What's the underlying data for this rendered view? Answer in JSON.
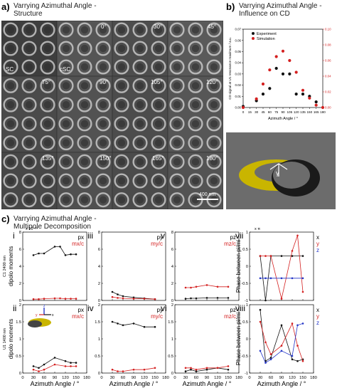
{
  "panel_a": {
    "letter": "a)",
    "title_line1": "Varrying Azimuthal Angle -",
    "title_line2": "Structure",
    "angles": [
      "0°",
      "30°",
      "45°",
      "75°",
      "90°",
      "105°",
      "120°",
      "135°",
      "150°",
      "165°",
      "180°"
    ],
    "labels": {
      "sc": "SC",
      "csc": "cSC"
    },
    "scale_bar": "400 nm"
  },
  "panel_b": {
    "letter": "b)",
    "title_line1": "Varrying Azimuthal Angle -",
    "title_line2": "Influence on CD",
    "legend_experiment": "Experiment",
    "legend_simulation": "Simulation",
    "ylabel_left": "CD signal at U1 resonance maximum / a.u.",
    "xlabel": "Azimuth Angle / °"
  },
  "panel_c": {
    "letter": "c)",
    "title_line1": "Varrying Azimuthal Angle -",
    "title_line2": "Multipole Decomposition",
    "row_label_top": "C1 2400 nm",
    "row_label_bottom": "U1 1400 nm",
    "ylabel_dipole": "dipolo moments",
    "ylabel_phase": "Phase between pi/mi",
    "xlabel": "Azimuth Angle / °",
    "scale_exp": "x 10⁻²⁶",
    "scale_pi": "x π",
    "panels": {
      "i": {
        "roman": "i",
        "leg1": "px",
        "leg2": "mx/c"
      },
      "ii": {
        "roman": "ii",
        "leg1": "px",
        "leg2": "mx/c"
      },
      "iii": {
        "roman": "iii",
        "leg1": "py",
        "leg2": "my/c"
      },
      "iv": {
        "roman": "iv",
        "leg1": "py",
        "leg2": "my/c"
      },
      "v": {
        "roman": "v",
        "leg1": "pz",
        "leg2": "mz/c"
      },
      "vi": {
        "roman": "vi",
        "leg1": "pz",
        "leg2": "mz/c"
      },
      "vii": {
        "roman": "vii",
        "leg1": "x",
        "leg2": "y",
        "leg3": "z"
      },
      "viii": {
        "roman": "viii",
        "leg1": "x",
        "leg2": "y",
        "leg3": "z"
      }
    },
    "inset_axes": {
      "z": "z",
      "y": "y",
      "x": "x"
    }
  },
  "colors": {
    "black": "#111111",
    "red": "#d42020",
    "blue": "#2436c8",
    "gold": "#c8b400"
  },
  "chart_data": [
    {
      "type": "scatter",
      "title": "Influence on CD",
      "xlabel": "Azimuth Angle / °",
      "ylabel": "CD signal at U1 resonance maximum / a.u.",
      "xlim": [
        0,
        180
      ],
      "x_ticks": [
        0,
        15,
        30,
        45,
        60,
        75,
        90,
        105,
        120,
        135,
        150,
        165,
        180
      ],
      "ylim_left": [
        0,
        0.07
      ],
      "y_ticks_left": [
        0.0,
        0.01,
        0.02,
        0.03,
        0.04,
        0.05,
        0.06,
        0.07
      ],
      "ylim_right": [
        0,
        0.1
      ],
      "y_ticks_right": [
        0.0,
        0.02,
        0.04,
        0.06,
        0.08,
        0.1
      ],
      "legend": "top-left",
      "series": [
        {
          "name": "Experiment",
          "axis": "left",
          "color": "#111111",
          "x": [
            0,
            30,
            45,
            60,
            75,
            90,
            105,
            120,
            135,
            150,
            165
          ],
          "y": [
            0.001,
            0.006,
            0.012,
            0.017,
            0.035,
            0.03,
            0.03,
            0.012,
            0.012,
            0.01,
            0.005
          ]
        },
        {
          "name": "Simulation",
          "axis": "right",
          "color": "#d42020",
          "x": [
            0,
            30,
            45,
            60,
            75,
            90,
            105,
            120,
            135,
            150,
            165,
            180
          ],
          "y": [
            0.0,
            0.011,
            0.03,
            0.048,
            0.065,
            0.072,
            0.06,
            0.045,
            0.022,
            0.012,
            0.003,
            0.0
          ]
        }
      ]
    },
    {
      "type": "line",
      "panel": "i",
      "xlim": [
        0,
        180
      ],
      "ylim": [
        0,
        8
      ],
      "series": [
        {
          "name": "px",
          "color": "#111111",
          "x": [
            30,
            45,
            60,
            90,
            105,
            120,
            135,
            150
          ],
          "y": [
            5.3,
            5.5,
            5.5,
            6.3,
            6.3,
            5.3,
            5.4,
            5.4
          ]
        },
        {
          "name": "mx/c",
          "color": "#d42020",
          "x": [
            30,
            45,
            60,
            90,
            105,
            120,
            135,
            150
          ],
          "y": [
            0.15,
            0.15,
            0.2,
            0.25,
            0.25,
            0.2,
            0.2,
            0.2
          ]
        }
      ]
    },
    {
      "type": "line",
      "panel": "iii",
      "xlim": [
        0,
        180
      ],
      "ylim": [
        0,
        8
      ],
      "series": [
        {
          "name": "py",
          "color": "#111111",
          "x": [
            30,
            45,
            60,
            90,
            120,
            150
          ],
          "y": [
            1.0,
            0.7,
            0.5,
            0.35,
            0.25,
            0.15
          ]
        },
        {
          "name": "my/c",
          "color": "#d42020",
          "x": [
            30,
            45,
            60,
            90,
            120,
            150
          ],
          "y": [
            0.4,
            0.3,
            0.25,
            0.2,
            0.2,
            0.15
          ]
        }
      ]
    },
    {
      "type": "line",
      "panel": "v",
      "xlim": [
        0,
        180
      ],
      "ylim": [
        0,
        8
      ],
      "series": [
        {
          "name": "pz",
          "color": "#111111",
          "x": [
            30,
            45,
            60,
            90,
            120,
            150
          ],
          "y": [
            0.2,
            0.25,
            0.25,
            0.3,
            0.3,
            0.3
          ]
        },
        {
          "name": "mz/c",
          "color": "#d42020",
          "x": [
            30,
            45,
            60,
            90,
            120,
            150
          ],
          "y": [
            1.5,
            1.5,
            1.6,
            1.8,
            1.6,
            1.6
          ]
        }
      ]
    },
    {
      "type": "line",
      "panel": "vii",
      "xlim": [
        0,
        180
      ],
      "ylim": [
        -1,
        1
      ],
      "series": [
        {
          "name": "x",
          "color": "#111111",
          "x": [
            30,
            45,
            60,
            90,
            120,
            150
          ],
          "y": [
            0.3,
            -1.0,
            0.3,
            0.3,
            0.3,
            0.3
          ]
        },
        {
          "name": "y",
          "color": "#d42020",
          "x": [
            30,
            45,
            60,
            90,
            120,
            135,
            150
          ],
          "y": [
            0.3,
            0.3,
            0.3,
            -0.95,
            0.45,
            0.9,
            -0.75
          ]
        },
        {
          "name": "z",
          "color": "#2436c8",
          "x": [
            30,
            45,
            60,
            90,
            120,
            150
          ],
          "y": [
            -0.35,
            -0.35,
            -0.35,
            -0.35,
            -0.35,
            -0.35
          ]
        }
      ]
    },
    {
      "type": "line",
      "panel": "ii",
      "xlim": [
        0,
        180
      ],
      "ylim": [
        0,
        2
      ],
      "series": [
        {
          "name": "px",
          "color": "#111111",
          "x": [
            30,
            45,
            60,
            90,
            120,
            135,
            150
          ],
          "y": [
            0.2,
            0.15,
            0.25,
            0.45,
            0.35,
            0.3,
            0.3
          ]
        },
        {
          "name": "mx/c",
          "color": "#d42020",
          "x": [
            30,
            45,
            60,
            90,
            120,
            135,
            150
          ],
          "y": [
            0.1,
            0.05,
            0.1,
            0.25,
            0.2,
            0.2,
            0.2
          ]
        }
      ]
    },
    {
      "type": "line",
      "panel": "iv",
      "xlim": [
        0,
        180
      ],
      "ylim": [
        0,
        2
      ],
      "series": [
        {
          "name": "py",
          "color": "#111111",
          "x": [
            30,
            45,
            60,
            90,
            120,
            150
          ],
          "y": [
            1.5,
            1.45,
            1.4,
            1.45,
            1.35,
            1.35
          ]
        },
        {
          "name": "my/c",
          "color": "#d42020",
          "x": [
            30,
            45,
            60,
            90,
            120,
            150
          ],
          "y": [
            0.1,
            0.05,
            0.05,
            0.1,
            0.1,
            0.15
          ]
        }
      ]
    },
    {
      "type": "line",
      "panel": "vi",
      "xlim": [
        0,
        180
      ],
      "ylim": [
        0,
        2
      ],
      "series": [
        {
          "name": "pz",
          "color": "#111111",
          "x": [
            30,
            45,
            60,
            90,
            120,
            150
          ],
          "y": [
            0.05,
            0.1,
            0.05,
            0.1,
            0.15,
            0.1
          ]
        },
        {
          "name": "mz/c",
          "color": "#d42020",
          "x": [
            30,
            45,
            60,
            90,
            120,
            150
          ],
          "y": [
            0.15,
            0.15,
            0.1,
            0.15,
            0.15,
            0.2
          ]
        }
      ]
    },
    {
      "type": "line",
      "panel": "viii",
      "xlim": [
        0,
        180
      ],
      "ylim": [
        -1,
        1
      ],
      "series": [
        {
          "name": "x",
          "color": "#111111",
          "x": [
            30,
            45,
            60,
            90,
            120,
            135,
            150
          ],
          "y": [
            0.85,
            -0.65,
            -0.55,
            0.4,
            -0.6,
            -0.65,
            -0.6
          ]
        },
        {
          "name": "y",
          "color": "#d42020",
          "x": [
            30,
            45,
            60,
            90,
            120,
            135,
            150
          ],
          "y": [
            0.5,
            -0.1,
            -0.45,
            -0.2,
            0.45,
            -0.2,
            -0.65
          ]
        },
        {
          "name": "z",
          "color": "#2436c8",
          "x": [
            30,
            45,
            60,
            90,
            120,
            135,
            150
          ],
          "y": [
            -0.35,
            -0.7,
            -0.6,
            -0.35,
            -0.5,
            0.4,
            0.45
          ]
        }
      ]
    }
  ]
}
